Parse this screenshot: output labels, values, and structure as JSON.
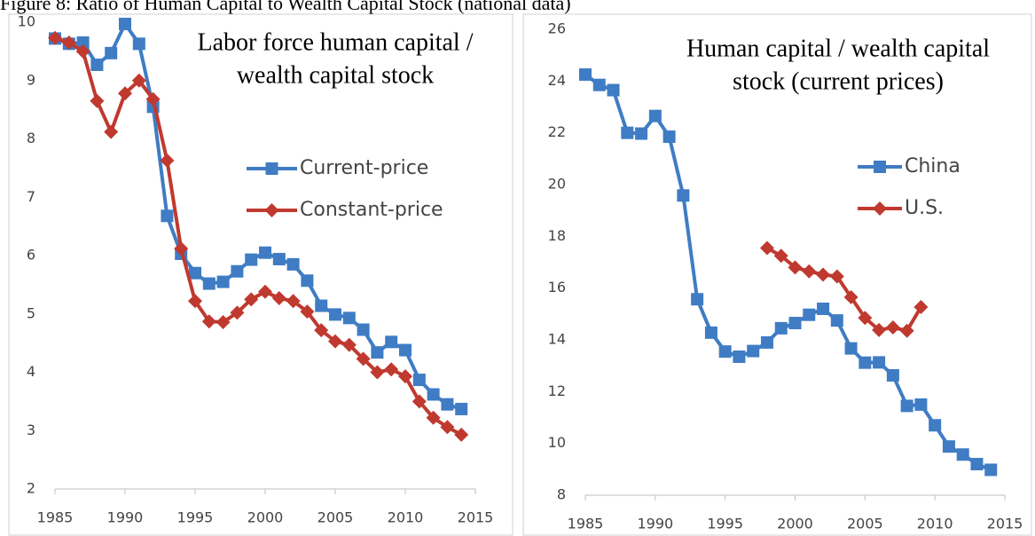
{
  "title": "Figure 8: Ratio of Human Capital to Wealth Capital Stock (national data)",
  "chart_data": [
    {
      "type": "line",
      "title": [
        "Labor force human capital /",
        "wealth capital stock"
      ],
      "xlim": [
        1985,
        2015
      ],
      "xticks": [
        1985,
        1990,
        1995,
        2000,
        2005,
        2010,
        2015
      ],
      "ylim": [
        2,
        10
      ],
      "yticks": [
        2,
        3,
        4,
        5,
        6,
        7,
        8,
        9,
        10
      ],
      "grid": false,
      "series": [
        {
          "name": "Current-price",
          "color": "#3f7cc4",
          "marker": "square",
          "x": [
            1985,
            1986,
            1987,
            1988,
            1989,
            1990,
            1991,
            1992,
            1993,
            1994,
            1995,
            1996,
            1997,
            1998,
            1999,
            2000,
            2001,
            2002,
            2003,
            2004,
            2005,
            2006,
            2007,
            2008,
            2009,
            2010,
            2011,
            2012,
            2013,
            2014
          ],
          "values": [
            9.72,
            9.63,
            9.65,
            9.27,
            9.47,
            9.97,
            9.63,
            8.55,
            6.68,
            6.03,
            5.7,
            5.52,
            5.55,
            5.73,
            5.93,
            6.05,
            5.94,
            5.85,
            5.57,
            5.14,
            4.99,
            4.93,
            4.73,
            4.34,
            4.52,
            4.38,
            3.87,
            3.62,
            3.45,
            3.37
          ]
        },
        {
          "name": "Constant-price",
          "color": "#c0392f",
          "marker": "diamond",
          "x": [
            1985,
            1986,
            1987,
            1988,
            1989,
            1990,
            1991,
            1992,
            1993,
            1994,
            1995,
            1996,
            1997,
            1998,
            1999,
            2000,
            2001,
            2002,
            2003,
            2004,
            2005,
            2006,
            2007,
            2008,
            2009,
            2010,
            2011,
            2012,
            2013,
            2014
          ],
          "values": [
            9.73,
            9.65,
            9.5,
            8.65,
            8.12,
            8.78,
            9.0,
            8.68,
            7.63,
            6.12,
            5.22,
            4.87,
            4.86,
            5.02,
            5.25,
            5.38,
            5.27,
            5.22,
            5.04,
            4.72,
            4.53,
            4.47,
            4.23,
            4.0,
            4.05,
            3.93,
            3.5,
            3.22,
            3.06,
            2.93
          ]
        }
      ]
    },
    {
      "type": "line",
      "title": [
        "Human capital / wealth capital",
        "stock (current prices)"
      ],
      "xlim": [
        1985,
        2015
      ],
      "xticks": [
        1985,
        1990,
        1995,
        2000,
        2005,
        2010,
        2015
      ],
      "ylim": [
        8,
        26
      ],
      "yticks": [
        8,
        10,
        12,
        14,
        16,
        18,
        20,
        22,
        24,
        26
      ],
      "grid": false,
      "series": [
        {
          "name": "China",
          "color": "#3f7cc4",
          "marker": "square",
          "x": [
            1985,
            1986,
            1987,
            1988,
            1989,
            1990,
            1991,
            1992,
            1993,
            1994,
            1995,
            1996,
            1997,
            1998,
            1999,
            2000,
            2001,
            2002,
            2003,
            2004,
            2005,
            2006,
            2007,
            2008,
            2009,
            2010,
            2011,
            2012,
            2013,
            2014
          ],
          "values": [
            24.25,
            23.85,
            23.65,
            22.0,
            21.97,
            22.65,
            21.85,
            19.58,
            15.57,
            14.28,
            13.55,
            13.35,
            13.57,
            13.9,
            14.45,
            14.65,
            14.97,
            15.2,
            14.75,
            13.67,
            13.12,
            13.13,
            12.63,
            11.45,
            11.5,
            10.7,
            9.88,
            9.57,
            9.2,
            8.98
          ]
        },
        {
          "name": "U.S.",
          "color": "#c0392f",
          "marker": "diamond",
          "x": [
            1998,
            1999,
            2000,
            2001,
            2002,
            2003,
            2004,
            2005,
            2006,
            2007,
            2008,
            2009
          ],
          "values": [
            17.55,
            17.25,
            16.8,
            16.65,
            16.52,
            16.45,
            15.65,
            14.85,
            14.38,
            14.48,
            14.35,
            15.27
          ]
        }
      ]
    }
  ]
}
